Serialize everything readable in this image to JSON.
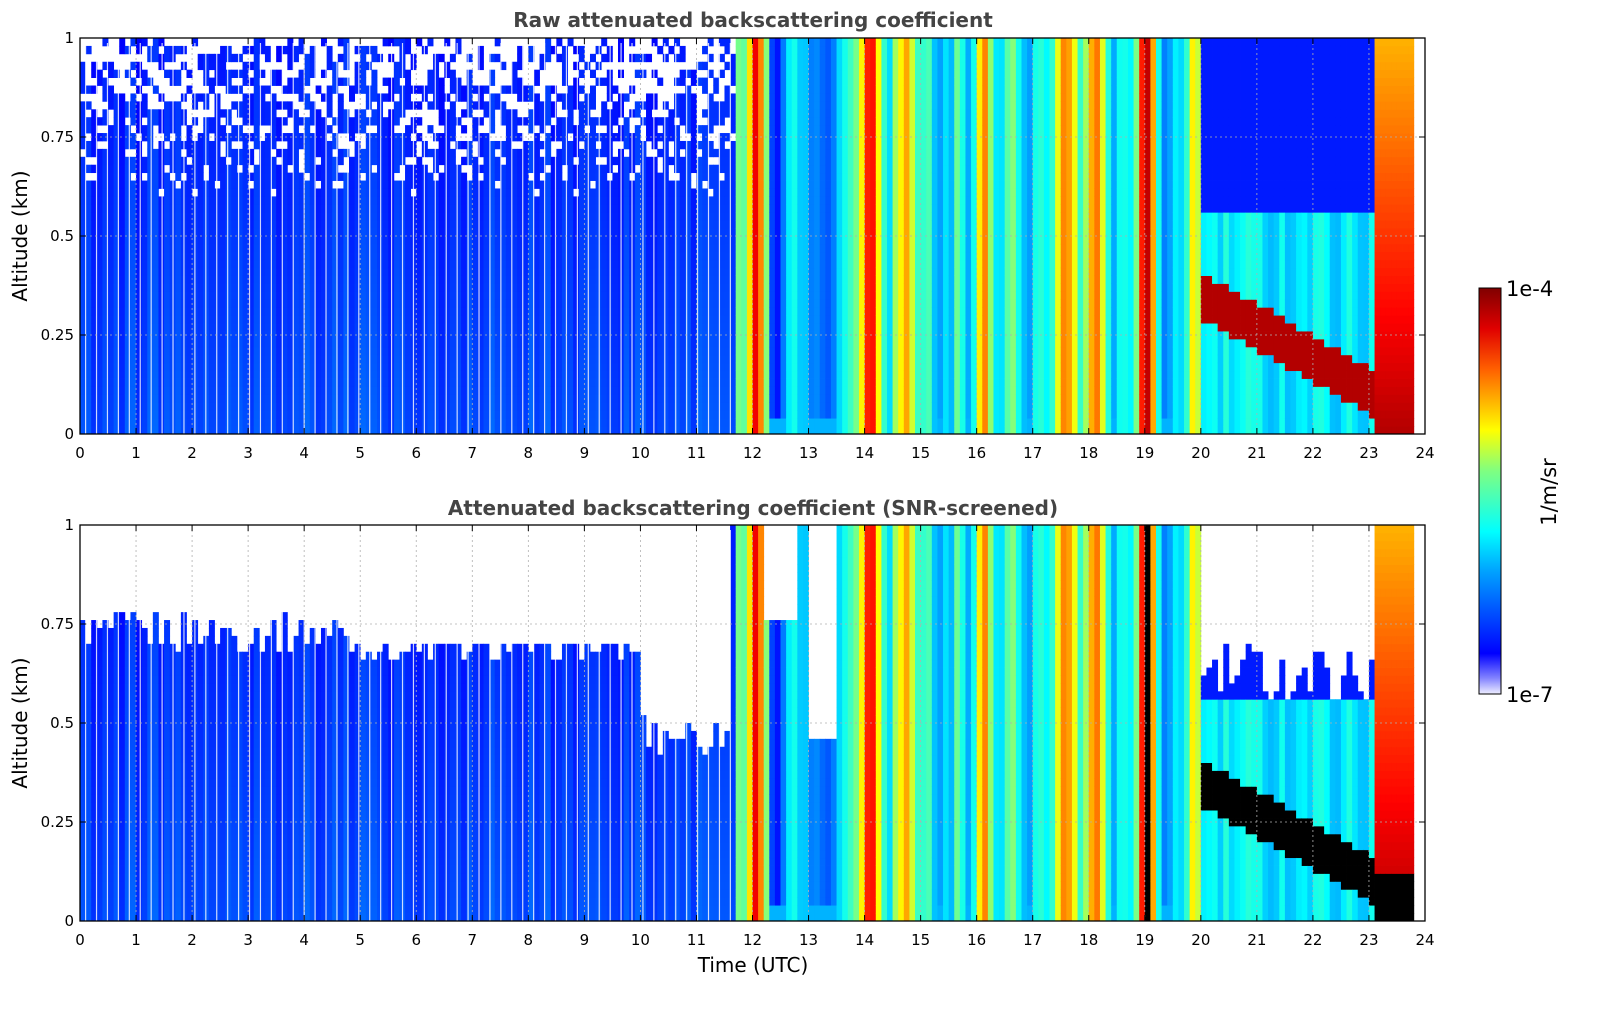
{
  "chart_data": [
    {
      "type": "heatmap",
      "title": "Raw attenuated backscattering coefficient",
      "xlabel": "",
      "ylabel": "Altitude (km)",
      "xlim": [
        0,
        24
      ],
      "ylim": [
        0,
        1
      ],
      "x_ticks": [
        "0",
        "1",
        "2",
        "3",
        "4",
        "5",
        "6",
        "7",
        "8",
        "9",
        "10",
        "11",
        "12",
        "13",
        "14",
        "15",
        "16",
        "17",
        "18",
        "19",
        "20",
        "21",
        "22",
        "23",
        "24"
      ],
      "y_ticks": [
        "0",
        "0.25",
        "0.5",
        "0.75",
        "1"
      ],
      "grid": true,
      "screened": false
    },
    {
      "type": "heatmap",
      "title": "Attenuated backscattering coefficient (SNR-screened)",
      "xlabel": "Time (UTC)",
      "ylabel": "Altitude (km)",
      "xlim": [
        0,
        24
      ],
      "ylim": [
        0,
        1
      ],
      "x_ticks": [
        "0",
        "1",
        "2",
        "3",
        "4",
        "5",
        "6",
        "7",
        "8",
        "9",
        "10",
        "11",
        "12",
        "13",
        "14",
        "15",
        "16",
        "17",
        "18",
        "19",
        "20",
        "21",
        "22",
        "23",
        "24"
      ],
      "y_ticks": [
        "0",
        "0.25",
        "0.5",
        "0.75",
        "1"
      ],
      "grid": true,
      "screened": true
    }
  ],
  "colorbar": {
    "label": "1/m/sr",
    "max_label": "1e-4",
    "min_label": "1e-7",
    "colormap": "jet",
    "scale": "log"
  },
  "colors": {
    "clear": "#ffffff",
    "low": "#1030ff",
    "saturated": "#000000"
  }
}
